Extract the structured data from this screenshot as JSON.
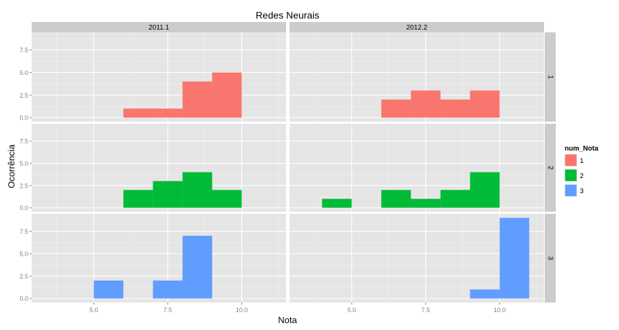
{
  "chart_data": {
    "type": "bar",
    "title": "Redes Neurais",
    "xlabel": "Nota",
    "ylabel": "Ocorrência",
    "xlim": [
      2.9,
      11.5
    ],
    "ylim": [
      -0.45,
      9.45
    ],
    "x_ticks": [
      5.0,
      7.5,
      10.0
    ],
    "x_tick_labels": [
      "5.0",
      "7.5",
      "10.0"
    ],
    "y_ticks": [
      0.0,
      2.5,
      5.0,
      7.5
    ],
    "y_tick_labels": [
      "0.0",
      "2.5",
      "5.0",
      "7.5"
    ],
    "bin_width": 1,
    "grid": true,
    "columns": [
      "2011.1",
      "2012.2"
    ],
    "rows": [
      "1",
      "2",
      "3"
    ],
    "legend": {
      "title": "num_Nota",
      "position": "right",
      "entries": [
        {
          "label": "1",
          "color": "#F8766D"
        },
        {
          "label": "2",
          "color": "#00BA38"
        },
        {
          "label": "3",
          "color": "#619CFF"
        }
      ]
    },
    "panels": [
      {
        "column": "2011.1",
        "row": "1",
        "color": "#F8766D",
        "bins": [
          {
            "x": 6,
            "count": 1
          },
          {
            "x": 7,
            "count": 1
          },
          {
            "x": 8,
            "count": 4
          },
          {
            "x": 9,
            "count": 5
          }
        ]
      },
      {
        "column": "2012.2",
        "row": "1",
        "color": "#F8766D",
        "bins": [
          {
            "x": 6,
            "count": 2
          },
          {
            "x": 7,
            "count": 3
          },
          {
            "x": 8,
            "count": 2
          },
          {
            "x": 9,
            "count": 3
          }
        ]
      },
      {
        "column": "2011.1",
        "row": "2",
        "color": "#00BA38",
        "bins": [
          {
            "x": 6,
            "count": 2
          },
          {
            "x": 7,
            "count": 3
          },
          {
            "x": 8,
            "count": 4
          },
          {
            "x": 9,
            "count": 2
          }
        ]
      },
      {
        "column": "2012.2",
        "row": "2",
        "color": "#00BA38",
        "bins": [
          {
            "x": 4,
            "count": 1
          },
          {
            "x": 6,
            "count": 2
          },
          {
            "x": 7,
            "count": 1
          },
          {
            "x": 8,
            "count": 2
          },
          {
            "x": 9,
            "count": 4
          }
        ]
      },
      {
        "column": "2011.1",
        "row": "3",
        "color": "#619CFF",
        "bins": [
          {
            "x": 5,
            "count": 2
          },
          {
            "x": 7,
            "count": 2
          },
          {
            "x": 8,
            "count": 7
          }
        ]
      },
      {
        "column": "2012.2",
        "row": "3",
        "color": "#619CFF",
        "bins": [
          {
            "x": 9,
            "count": 1
          },
          {
            "x": 10,
            "count": 9
          }
        ]
      }
    ]
  }
}
